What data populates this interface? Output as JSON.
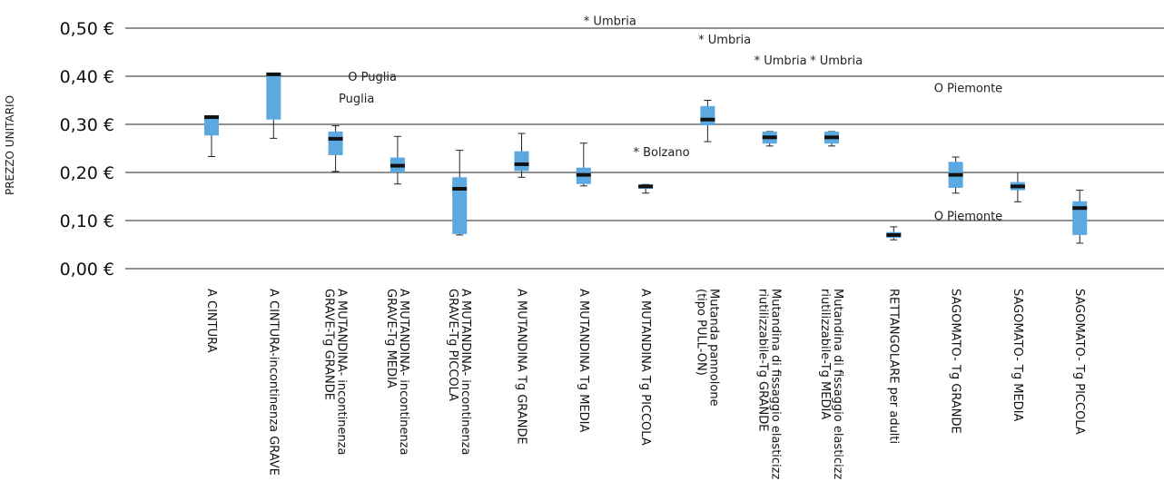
{
  "chart_data": {
    "type": "boxplot",
    "title": "",
    "xlabel": "",
    "ylabel": "PREZZO UNITARIO",
    "ylim": [
      0,
      0.5
    ],
    "y_ticks": [
      "0,00 €",
      "0,10 €",
      "0,20 €",
      "0,30 €",
      "0,40 €",
      "0,50 €"
    ],
    "y_tick_values": [
      0,
      0.1,
      0.2,
      0.3,
      0.4,
      0.5
    ],
    "grid": "horizontal",
    "box_color": "#5ba9e0",
    "median_color": "#111111",
    "categories": [
      [
        "A CINTURA"
      ],
      [
        "A CINTURA-incontinenza GRAVE"
      ],
      [
        "A MUTANDINA- incontinenza",
        "GRAVE-Tg GRANDE"
      ],
      [
        "A MUTANDINA- incontinenza",
        "GRAVE-Tg MEDIA"
      ],
      [
        "A MUTANDINA- incontinenza",
        "GRAVE-Tg PICCOLA"
      ],
      [
        "A MUTANDINA Tg GRANDE"
      ],
      [
        "A MUTANDINA Tg MEDIA"
      ],
      [
        "A MUTANDINA Tg PICCOLA"
      ],
      [
        "Mutanda pannolone",
        "(tipo PULL-ON)"
      ],
      [
        "Mutandina di fissaggio elasticizz",
        "riutilizzabile-Tg GRANDE"
      ],
      [
        "Mutandina di fissaggio elasticizz",
        "riutilizzabile-Tg MEDIA"
      ],
      [
        "RETTANGOLARE per adulti"
      ],
      [
        "SAGOMATO- Tg GRANDE"
      ],
      [
        "SAGOMATO- Tg MEDIA"
      ],
      [
        "SAGOMATO- Tg PICCOLA"
      ]
    ],
    "boxes": [
      {
        "min": 0.233,
        "q1": 0.277,
        "median": 0.315,
        "q3": 0.318,
        "max": 0.318
      },
      {
        "min": 0.271,
        "q1": 0.31,
        "median": 0.404,
        "q3": 0.404,
        "max": 0.404
      },
      {
        "min": 0.202,
        "q1": 0.236,
        "median": 0.27,
        "q3": 0.285,
        "max": 0.297
      },
      {
        "min": 0.176,
        "q1": 0.2,
        "median": 0.214,
        "q3": 0.231,
        "max": 0.275
      },
      {
        "min": 0.07,
        "q1": 0.072,
        "median": 0.166,
        "q3": 0.19,
        "max": 0.246
      },
      {
        "min": 0.19,
        "q1": 0.203,
        "median": 0.217,
        "q3": 0.244,
        "max": 0.281
      },
      {
        "min": 0.172,
        "q1": 0.176,
        "median": 0.195,
        "q3": 0.21,
        "max": 0.261
      },
      {
        "min": 0.157,
        "q1": 0.166,
        "median": 0.171,
        "q3": 0.175,
        "max": 0.175
      },
      {
        "min": 0.264,
        "q1": 0.298,
        "median": 0.31,
        "q3": 0.338,
        "max": 0.35
      },
      {
        "min": 0.255,
        "q1": 0.26,
        "median": 0.273,
        "q3": 0.285,
        "max": 0.285
      },
      {
        "min": 0.255,
        "q1": 0.26,
        "median": 0.273,
        "q3": 0.285,
        "max": 0.285
      },
      {
        "min": 0.06,
        "q1": 0.064,
        "median": 0.07,
        "q3": 0.076,
        "max": 0.087
      },
      {
        "min": 0.157,
        "q1": 0.168,
        "median": 0.195,
        "q3": 0.222,
        "max": 0.232
      },
      {
        "min": 0.139,
        "q1": 0.163,
        "median": 0.171,
        "q3": 0.18,
        "max": 0.2
      },
      {
        "min": 0.053,
        "q1": 0.07,
        "median": 0.126,
        "q3": 0.14,
        "max": 0.163
      }
    ],
    "annotations": [
      {
        "text": "* Umbria",
        "category": 8,
        "dx": -2,
        "value": 0.516
      },
      {
        "text": "* Umbria",
        "category": 8,
        "dx": -0.15,
        "value": 0.477
      },
      {
        "text": "* Umbria",
        "category": 9,
        "dx": -0.25,
        "value": 0.434
      },
      {
        "text": "* Umbria",
        "category": 10,
        "dx": -0.35,
        "value": 0.434
      },
      {
        "text": "O Puglia",
        "category": 2,
        "dx": 0.2,
        "value": 0.4
      },
      {
        "text": "Puglia",
        "category": 2,
        "dx": 0.05,
        "value": 0.355
      },
      {
        "text": "* Bolzano",
        "category": 7,
        "dx": -0.2,
        "value": 0.243
      },
      {
        "text": "O Piemonte",
        "category": 12,
        "dx": -0.35,
        "value": 0.376
      },
      {
        "text": "O Piemonte",
        "category": 12,
        "dx": -0.35,
        "value": 0.11
      }
    ]
  }
}
